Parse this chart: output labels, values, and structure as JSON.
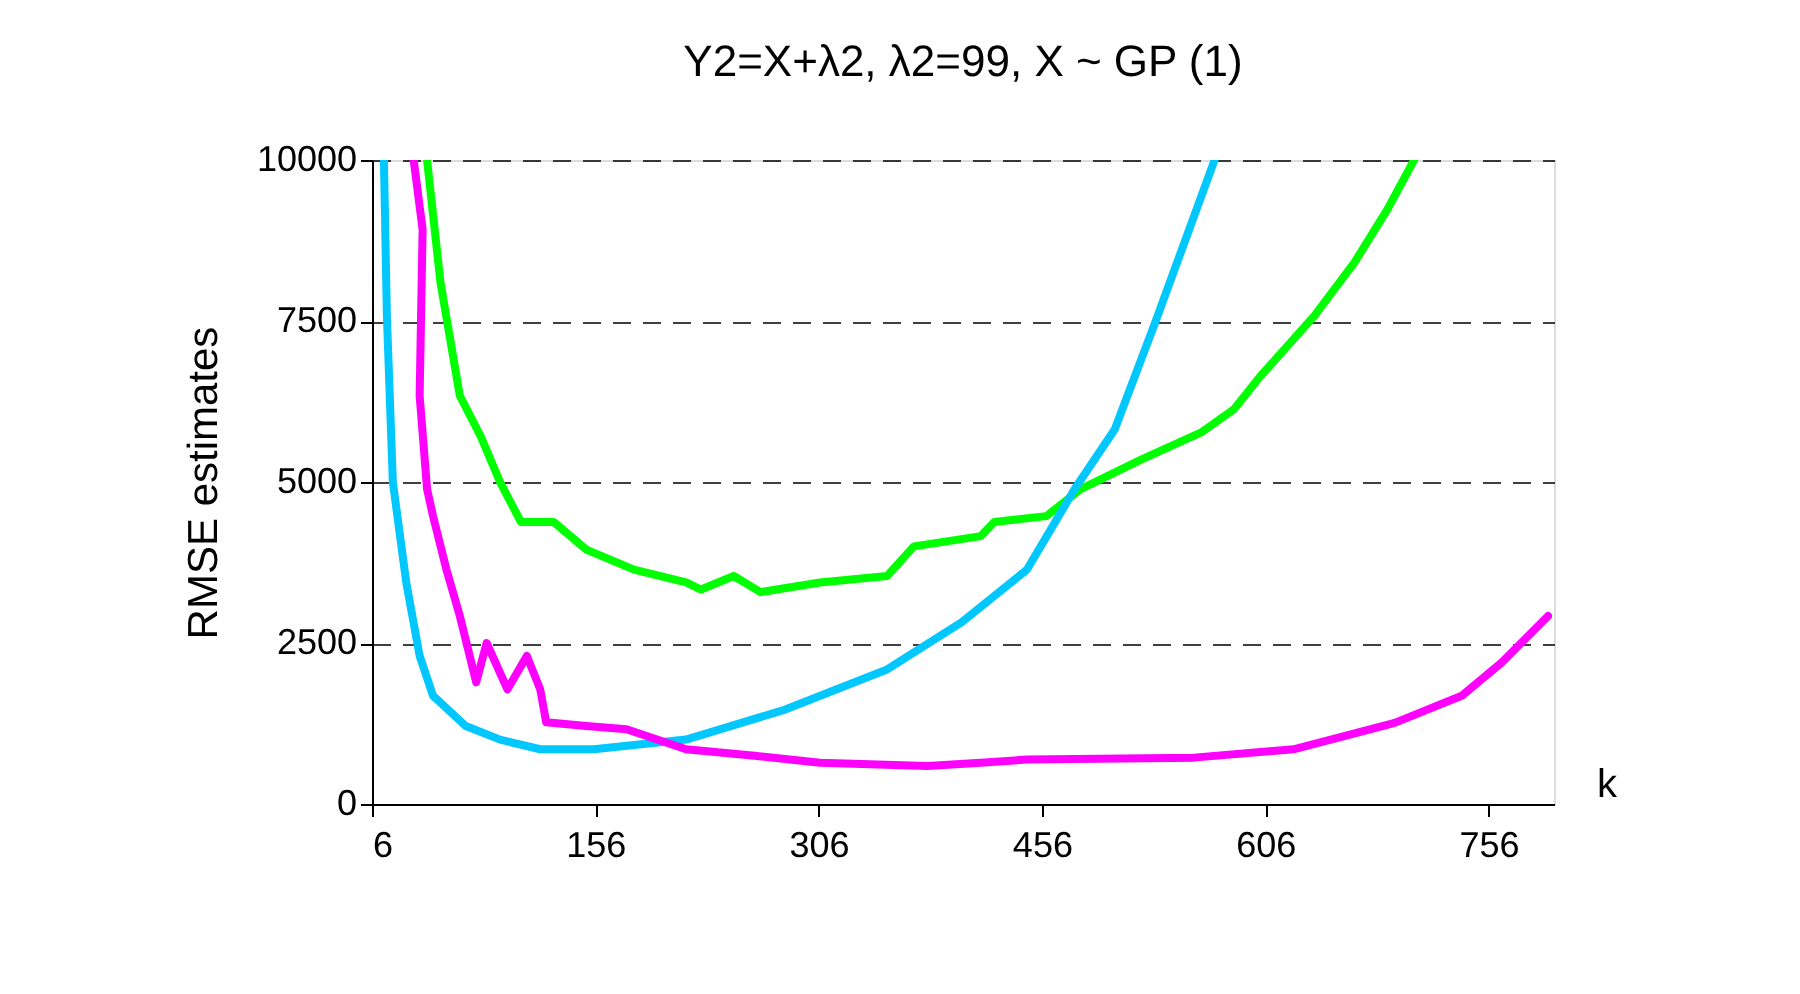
{
  "chart_data": {
    "type": "line",
    "title": "Y2=X+λ2,  λ2=99,  X ~ GP (1)",
    "xlabel": "k",
    "ylabel": "RMSE estimates",
    "xlim": [
      6,
      800
    ],
    "xticks": [
      6,
      156,
      306,
      456,
      606,
      756
    ],
    "ylim": [
      0,
      10000
    ],
    "yticks": [
      0,
      2500,
      5000,
      7500,
      10000
    ],
    "grid": "y",
    "marker": "none",
    "line_style": "solid",
    "series": [
      {
        "color": "#00ff00",
        "x": [
          43,
          52,
          65,
          79,
          92,
          106,
          128,
          150,
          182,
          217,
          227,
          249,
          267,
          307,
          352,
          370,
          415,
          424,
          459,
          482,
          523,
          563,
          585,
          603,
          639,
          666,
          688,
          706
        ],
        "values": [
          10000,
          8100,
          6340,
          5710,
          5000,
          4380,
          4380,
          3950,
          3640,
          3440,
          3330,
          3540,
          3290,
          3440,
          3540,
          4000,
          4160,
          4380,
          4470,
          4890,
          5350,
          5770,
          6130,
          6650,
          7580,
          8410,
          9230,
          10000
        ]
      },
      {
        "color": "#00c8ff",
        "x": [
          14,
          16,
          20,
          29,
          38,
          47,
          69,
          92,
          119,
          155,
          217,
          284,
          352,
          402,
          446,
          478,
          505,
          532,
          550,
          572
        ],
        "values": [
          10000,
          7580,
          5000,
          3440,
          2300,
          1680,
          1210,
          1000,
          850,
          850,
          1000,
          1470,
          2090,
          2820,
          3640,
          4890,
          5820,
          7470,
          8610,
          10000
        ]
      },
      {
        "color": "#ff00ff",
        "x": [
          34,
          40,
          38,
          43,
          47,
          56,
          65,
          76,
          83,
          97,
          110,
          119,
          123,
          150,
          177,
          217,
          263,
          307,
          379,
          415,
          446,
          558,
          625,
          693,
          738,
          765,
          796
        ],
        "values": [
          10000,
          8920,
          6340,
          4890,
          4470,
          3640,
          2920,
          1890,
          2500,
          1780,
          2300,
          1780,
          1270,
          1210,
          1160,
          850,
          750,
          640,
          590,
          640,
          690,
          720,
          850,
          1260,
          1680,
          2200,
          2920
        ]
      }
    ]
  }
}
